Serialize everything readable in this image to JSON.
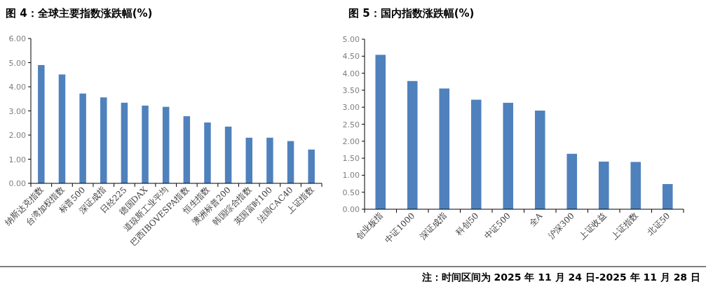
{
  "chart_data": [
    {
      "type": "bar",
      "title": "图 4：全球主要指数涨跌幅(%)",
      "categories": [
        "纳斯达克指数",
        "台湾加权指数",
        "标普500",
        "深证成指",
        "日经225",
        "德国DAX",
        "道琼斯工业平均",
        "巴西IBOVESPA指数",
        "恒生指数",
        "澳洲标普200",
        "韩国综合指数",
        "英国富时100",
        "法国CAC40",
        "上证指数"
      ],
      "values": [
        4.9,
        4.51,
        3.72,
        3.56,
        3.34,
        3.22,
        3.17,
        2.78,
        2.52,
        2.35,
        1.89,
        1.89,
        1.75,
        1.4
      ],
      "color": "#4f81bd",
      "ylim": [
        0,
        6
      ],
      "yticks": [
        {
          "value": 0,
          "label": "0.00"
        },
        {
          "value": 1,
          "label": "1.00"
        },
        {
          "value": 2,
          "label": "2.00"
        },
        {
          "value": 3,
          "label": "3.00"
        },
        {
          "value": 4,
          "label": "4.00"
        },
        {
          "value": 5,
          "label": "5.00"
        },
        {
          "value": 6,
          "label": "6.00"
        }
      ]
    },
    {
      "type": "bar",
      "title": "图 5：国内指数涨跌幅(%)",
      "categories": [
        "创业板指",
        "中证1000",
        "深证成指",
        "科创50",
        "中证500",
        "全A",
        "沪深300",
        "上证收益",
        "上证指数",
        "北证50"
      ],
      "values": [
        4.54,
        3.77,
        3.55,
        3.22,
        3.13,
        2.9,
        1.63,
        1.4,
        1.39,
        0.74
      ],
      "color": "#4f81bd",
      "ylim": [
        0,
        5
      ],
      "yticks": [
        {
          "value": 0,
          "label": "0.00"
        },
        {
          "value": 0.5,
          "label": "0.50"
        },
        {
          "value": 1,
          "label": "1.00"
        },
        {
          "value": 1.5,
          "label": "1.50"
        },
        {
          "value": 2,
          "label": "2.00"
        },
        {
          "value": 2.5,
          "label": "2.50"
        },
        {
          "value": 3,
          "label": "3.00"
        },
        {
          "value": 3.5,
          "label": "3.50"
        },
        {
          "value": 4,
          "label": "4.00"
        },
        {
          "value": 4.5,
          "label": "4.50"
        },
        {
          "value": 5,
          "label": "5.00"
        }
      ],
      "annotations": [
        "注：时间区间为 2025 年 11 月 24 日-2025 年 11 月 28 日"
      ]
    }
  ]
}
